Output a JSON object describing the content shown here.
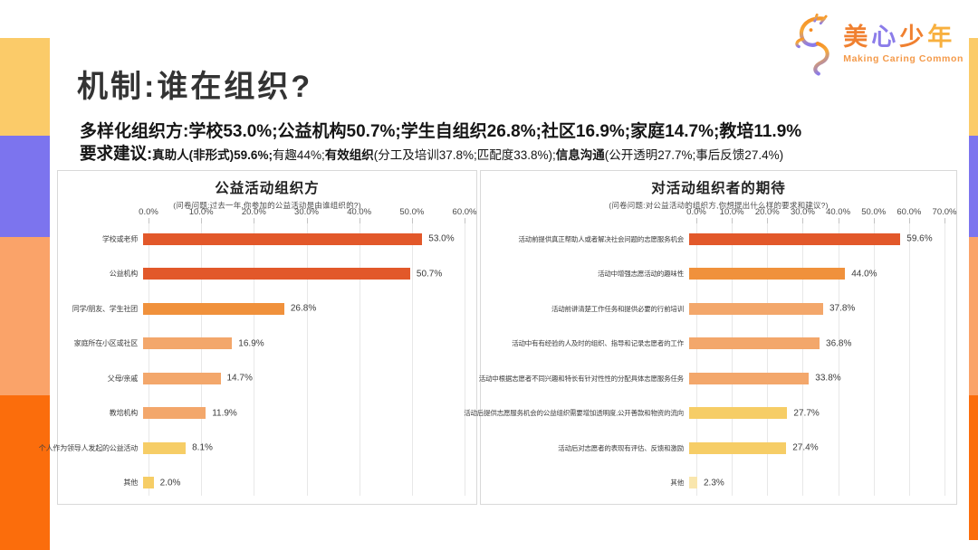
{
  "slide": {
    "title": "机制:谁在组织?"
  },
  "logo": {
    "cn": "美心少年",
    "chars": [
      {
        "ch": "美",
        "color": "#f08030"
      },
      {
        "ch": "心",
        "color": "#8b7ce9"
      },
      {
        "ch": "少",
        "color": "#f08030"
      },
      {
        "ch": "年",
        "color": "#f8b03e"
      }
    ],
    "en": "Making Caring Common"
  },
  "headline1": {
    "lead": "多样化组织方:",
    "text": "学校53.0%;公益机构50.7%;学生自组织26.8%;社区16.9%;家庭14.7%;教培11.9%"
  },
  "headline2": {
    "lead": "要求建议:",
    "segments": [
      {
        "text": "真助人(非形式)59.6%;",
        "bold": true
      },
      {
        "text": "有趣44%;",
        "bold": false
      },
      {
        "text": "有效组织",
        "bold": true
      },
      {
        "text": "(分工及培训37.8%;匹配度33.8%);",
        "bold": false
      },
      {
        "text": "信息沟通",
        "bold": true
      },
      {
        "text": "(公开透明27.7%;事后反馈27.4%)",
        "bold": false
      }
    ]
  },
  "theme": {
    "sidebar_colors": [
      "#fbcb69",
      "#7c74ee",
      "#faa369",
      "#fb6d0c"
    ],
    "bar_dark_orange": "#e2582a",
    "bar_orange": "#f0913c",
    "bar_light_orange": "#f3a76b",
    "bar_yellow": "#f6cd66",
    "bar_pale_yellow": "#f9e6ad"
  },
  "chart_data": [
    {
      "type": "bar",
      "orientation": "horizontal",
      "title": "公益活动组织方",
      "subtitle": "(问卷问题:过去一年,你参加的公益活动是由谁组织的?)",
      "x_ticks": [
        "0.0%",
        "10.0%",
        "20.0%",
        "30.0%",
        "40.0%",
        "50.0%",
        "60.0%"
      ],
      "x_max": 60,
      "grid": true,
      "bars": [
        {
          "label": "学校或老师",
          "value": 53.0,
          "display": "53.0%",
          "color": "#e2582a"
        },
        {
          "label": "公益机构",
          "value": 50.7,
          "display": "50.7%",
          "color": "#e2582a"
        },
        {
          "label": "同学/朋友、学生社团",
          "value": 26.8,
          "display": "26.8%",
          "color": "#f0913c"
        },
        {
          "label": "家庭所在小区或社区",
          "value": 16.9,
          "display": "16.9%",
          "color": "#f3a76b"
        },
        {
          "label": "父母/亲戚",
          "value": 14.7,
          "display": "14.7%",
          "color": "#f3a76b"
        },
        {
          "label": "教培机构",
          "value": 11.9,
          "display": "11.9%",
          "color": "#f3a76b"
        },
        {
          "label": "个人作为领导人发起的公益活动",
          "value": 8.1,
          "display": "8.1%",
          "color": "#f6cd66"
        },
        {
          "label": "其他",
          "value": 2.0,
          "display": "2.0%",
          "color": "#f6cd66"
        }
      ]
    },
    {
      "type": "bar",
      "orientation": "horizontal",
      "title": "对活动组织者的期待",
      "subtitle": "(问卷问题:对公益活动的组织方,你想提出什么样的要求和建议?)",
      "x_ticks": [
        "0.0%",
        "10.0%",
        "20.0%",
        "30.0%",
        "40.0%",
        "50.0%",
        "60.0%",
        "70.0%"
      ],
      "x_max": 70,
      "grid": true,
      "bars": [
        {
          "label": "活动前提供真正帮助人或者解决社会问题的志愿服务机会",
          "value": 59.6,
          "display": "59.6%",
          "color": "#e2582a"
        },
        {
          "label": "活动中增强志愿活动的趣味性",
          "value": 44.0,
          "display": "44.0%",
          "color": "#f0913c"
        },
        {
          "label": "活动前讲清楚工作任务和提供必要的行前培训",
          "value": 37.8,
          "display": "37.8%",
          "color": "#f3a76b"
        },
        {
          "label": "活动中有有经验的人及时的组织、指导和记录志愿者的工作",
          "value": 36.8,
          "display": "36.8%",
          "color": "#f3a76b"
        },
        {
          "label": "活动中根据志愿者不同兴趣和特长有针对性性的分配具体志愿服务任务",
          "value": 33.8,
          "display": "33.8%",
          "color": "#f3a76b"
        },
        {
          "label": "活动后提供志愿服务机会的公益组织需要增加透明度,公开善款和物资的流向",
          "value": 27.7,
          "display": "27.7%",
          "color": "#f6cd66"
        },
        {
          "label": "活动后对志愿者的表现有评估、反馈和激励",
          "value": 27.4,
          "display": "27.4%",
          "color": "#f6cd66"
        },
        {
          "label": "其他",
          "value": 2.3,
          "display": "2.3%",
          "color": "#f9e6ad"
        }
      ]
    }
  ]
}
